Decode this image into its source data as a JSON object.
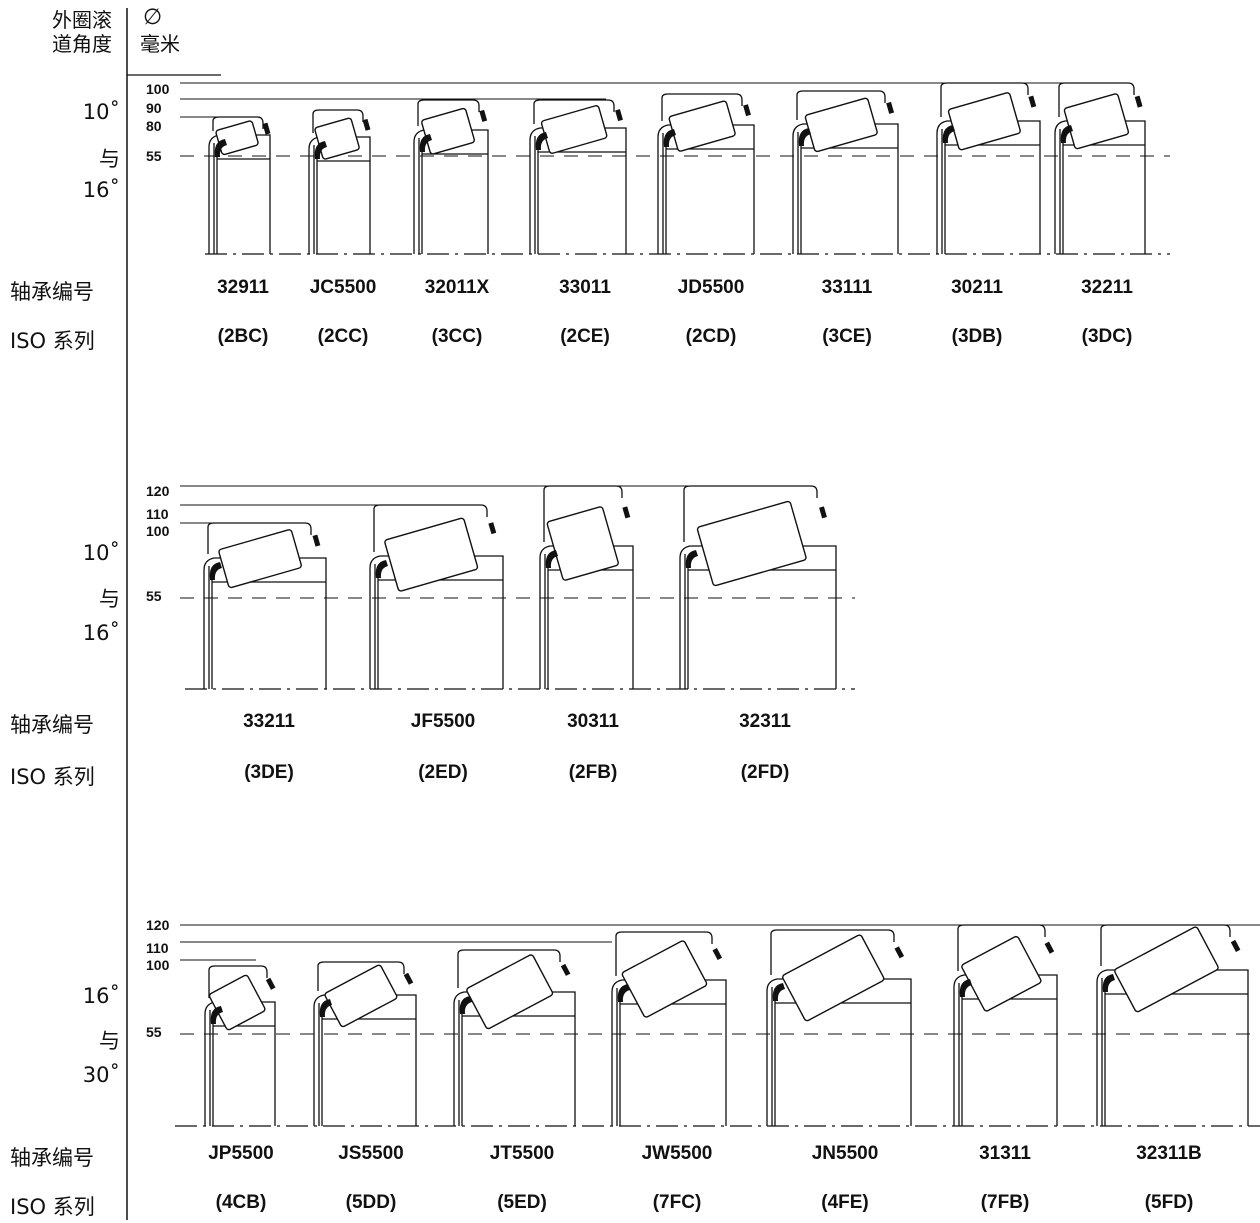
{
  "header": {
    "angle_title_line1": "外圈滚",
    "angle_title_line2": "道角度",
    "diameter_symbol": "∅",
    "unit": "毫米"
  },
  "row_labels": {
    "bearing_number": "轴承编号",
    "iso_series": "ISO 系列"
  },
  "groups": [
    {
      "angle": {
        "from": "10˚",
        "conj": "与",
        "to": "16˚"
      },
      "ticks": [
        "100",
        "90",
        "80",
        "55"
      ],
      "bearings": [
        {
          "code": "32911",
          "iso": "(2BC)"
        },
        {
          "code": "JC5500",
          "iso": "(2CC)"
        },
        {
          "code": "32011X",
          "iso": "(3CC)"
        },
        {
          "code": "33011",
          "iso": "(2CE)"
        },
        {
          "code": "JD5500",
          "iso": "(2CD)"
        },
        {
          "code": "33111",
          "iso": "(3CE)"
        },
        {
          "code": "30211",
          "iso": "(3DB)"
        },
        {
          "code": "32211",
          "iso": "(3DC)"
        }
      ]
    },
    {
      "angle": {
        "from": "10˚",
        "conj": "与",
        "to": "16˚"
      },
      "ticks": [
        "120",
        "110",
        "100",
        "55"
      ],
      "bearings": [
        {
          "code": "33211",
          "iso": "(3DE)"
        },
        {
          "code": "JF5500",
          "iso": "(2ED)"
        },
        {
          "code": "30311",
          "iso": "(2FB)"
        },
        {
          "code": "32311",
          "iso": "(2FD)"
        }
      ]
    },
    {
      "angle": {
        "from": "16˚",
        "conj": "与",
        "to": "30˚"
      },
      "ticks": [
        "120",
        "110",
        "100",
        "55"
      ],
      "bearings": [
        {
          "code": "JP5500",
          "iso": "(4CB)"
        },
        {
          "code": "JS5500",
          "iso": "(5DD)"
        },
        {
          "code": "JT5500",
          "iso": "(5ED)"
        },
        {
          "code": "JW5500",
          "iso": "(7FC)"
        },
        {
          "code": "JN5500",
          "iso": "(4FE)"
        },
        {
          "code": "31311",
          "iso": "(7FB)"
        },
        {
          "code": "32311B",
          "iso": "(5FD)"
        }
      ]
    }
  ]
}
